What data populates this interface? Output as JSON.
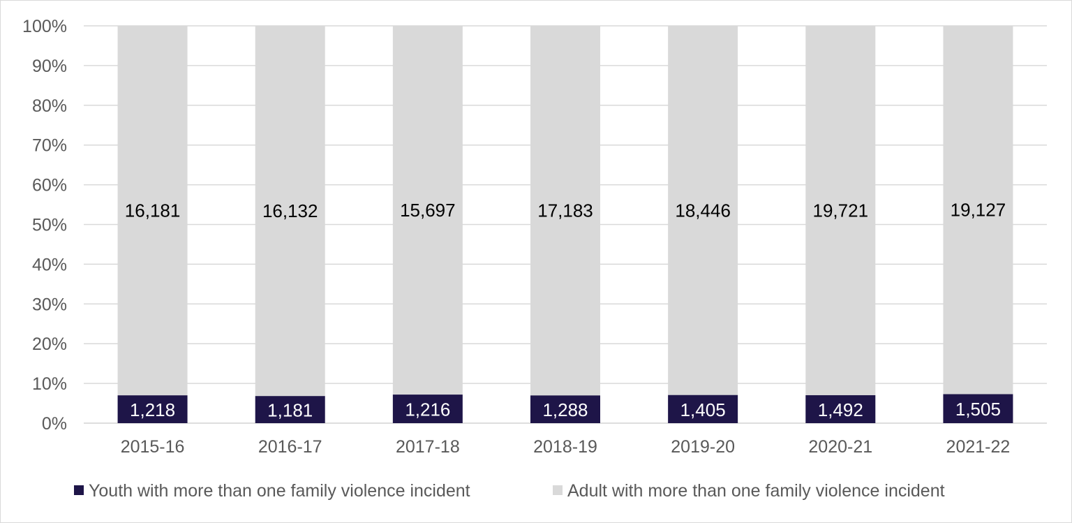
{
  "chart_data": {
    "type": "bar",
    "stacked": "100%",
    "categories": [
      "2015-16",
      "2016-17",
      "2017-18",
      "2018-19",
      "2019-20",
      "2020-21",
      "2021-22"
    ],
    "series": [
      {
        "name": "Youth with more than one family violence incident",
        "values": [
          1218,
          1181,
          1216,
          1288,
          1405,
          1492,
          1505
        ],
        "color": "#1e1548"
      },
      {
        "name": "Adult with more than one family violence incident",
        "values": [
          16181,
          16132,
          15697,
          17183,
          18446,
          19721,
          19127
        ],
        "color": "#d9d9d9"
      }
    ],
    "y_ticks": [
      "0%",
      "10%",
      "20%",
      "30%",
      "40%",
      "50%",
      "60%",
      "70%",
      "80%",
      "90%",
      "100%"
    ],
    "ylim": [
      0,
      100
    ],
    "data_labels": {
      "youth": [
        "1,218",
        "1,181",
        "1,216",
        "1,288",
        "1,405",
        "1,492",
        "1,505"
      ],
      "adult": [
        "16,181",
        "16,132",
        "15,697",
        "17,183",
        "18,446",
        "19,721",
        "19,127"
      ]
    },
    "grid": true,
    "legend": "bottom"
  }
}
